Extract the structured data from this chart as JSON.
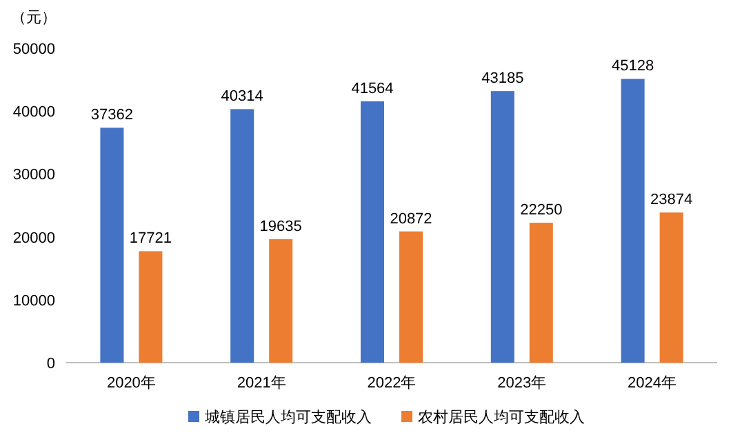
{
  "chart_data": {
    "type": "bar",
    "ylabel": "（元）",
    "categories": [
      "2020年",
      "2021年",
      "2022年",
      "2023年",
      "2024年"
    ],
    "series": [
      {
        "name": "城镇居民人均可支配收入",
        "color": "#4472c4",
        "values": [
          37362,
          40314,
          41564,
          43185,
          45128
        ]
      },
      {
        "name": "农村居民人均可支配收入",
        "color": "#ed7d31",
        "values": [
          17721,
          19635,
          20872,
          22250,
          23874
        ]
      }
    ],
    "ylim": [
      0,
      50000
    ],
    "yticks": [
      0,
      10000,
      20000,
      30000,
      40000,
      50000
    ],
    "grid": false,
    "legend": "bottom",
    "data_labels": true
  }
}
